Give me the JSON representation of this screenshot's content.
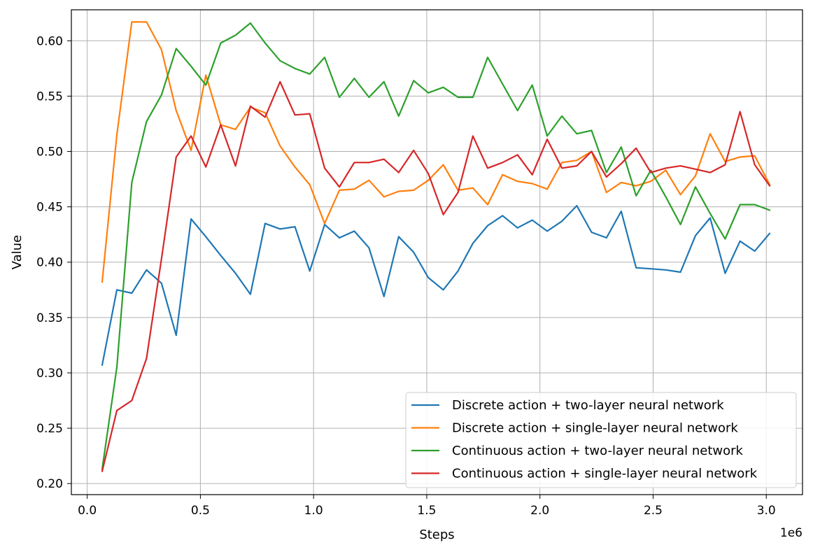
{
  "chart_data": {
    "type": "line",
    "title": "",
    "xlabel": "Steps",
    "ylabel": "Value",
    "x_offset_label": "1e6",
    "xlim": [
      -0.07,
      3.16
    ],
    "ylim": [
      0.19,
      0.628
    ],
    "x_ticks": [
      0.0,
      0.5,
      1.0,
      1.5,
      2.0,
      2.5,
      3.0
    ],
    "x_tick_labels": [
      "0.0",
      "0.5",
      "1.0",
      "1.5",
      "2.0",
      "2.5",
      "3.0"
    ],
    "y_ticks": [
      0.2,
      0.25,
      0.3,
      0.35,
      0.4,
      0.45,
      0.5,
      0.55,
      0.6
    ],
    "y_tick_labels": [
      "0.20",
      "0.25",
      "0.30",
      "0.35",
      "0.40",
      "0.45",
      "0.50",
      "0.55",
      "0.60"
    ],
    "grid": true,
    "legend_position": "lower-right",
    "x": [
      0.066,
      0.131,
      0.197,
      0.262,
      0.328,
      0.393,
      0.459,
      0.524,
      0.59,
      0.655,
      0.721,
      0.786,
      0.852,
      0.918,
      0.983,
      1.049,
      1.114,
      1.18,
      1.245,
      1.311,
      1.376,
      1.442,
      1.507,
      1.573,
      1.638,
      1.704,
      1.769,
      1.835,
      1.901,
      1.966,
      2.032,
      2.097,
      2.163,
      2.228,
      2.294,
      2.359,
      2.425,
      2.49,
      2.556,
      2.621,
      2.687,
      2.752,
      2.818,
      2.884,
      2.949,
      3.015
    ],
    "series": [
      {
        "name": "Discrete action + two-layer neural network",
        "color": "#1f77b4",
        "values": [
          0.307,
          0.375,
          0.372,
          0.393,
          0.381,
          0.334,
          0.439,
          0.423,
          0.406,
          0.39,
          0.371,
          0.435,
          0.43,
          0.432,
          0.392,
          0.434,
          0.422,
          0.428,
          0.413,
          0.369,
          0.423,
          0.409,
          0.386,
          0.375,
          0.392,
          0.417,
          0.433,
          0.442,
          0.431,
          0.438,
          0.428,
          0.437,
          0.451,
          0.427,
          0.422,
          0.446,
          0.395,
          0.394,
          0.393,
          0.391,
          0.424,
          0.44,
          0.39,
          0.419,
          0.41,
          0.426
        ]
      },
      {
        "name": "Discrete action + single-layer neural network",
        "color": "#ff7f0e",
        "values": [
          0.382,
          0.515,
          0.617,
          0.617,
          0.592,
          0.537,
          0.501,
          0.569,
          0.524,
          0.52,
          0.54,
          0.535,
          0.505,
          0.486,
          0.47,
          0.435,
          0.465,
          0.466,
          0.474,
          0.459,
          0.464,
          0.465,
          0.474,
          0.488,
          0.465,
          0.467,
          0.452,
          0.479,
          0.473,
          0.471,
          0.466,
          0.49,
          0.492,
          0.5,
          0.463,
          0.472,
          0.469,
          0.473,
          0.483,
          0.461,
          0.478,
          0.516,
          0.491,
          0.495,
          0.496,
          0.47
        ]
      },
      {
        "name": "Continuous action + two-layer neural network",
        "color": "#2ca02c",
        "values": [
          0.213,
          0.305,
          0.472,
          0.527,
          0.551,
          0.593,
          0.577,
          0.56,
          0.598,
          0.605,
          0.616,
          0.598,
          0.582,
          0.575,
          0.57,
          0.585,
          0.549,
          0.566,
          0.549,
          0.563,
          0.532,
          0.564,
          0.553,
          0.558,
          0.549,
          0.549,
          0.585,
          0.561,
          0.537,
          0.56,
          0.514,
          0.532,
          0.516,
          0.519,
          0.481,
          0.504,
          0.46,
          0.483,
          0.459,
          0.434,
          0.468,
          0.444,
          0.421,
          0.452,
          0.452,
          0.447
        ]
      },
      {
        "name": "Continuous action + single-layer neural network",
        "color": "#d62728",
        "values": [
          0.211,
          0.266,
          0.275,
          0.313,
          0.403,
          0.495,
          0.514,
          0.486,
          0.524,
          0.487,
          0.541,
          0.531,
          0.563,
          0.533,
          0.534,
          0.485,
          0.468,
          0.49,
          0.49,
          0.493,
          0.481,
          0.501,
          0.48,
          0.443,
          0.463,
          0.514,
          0.485,
          0.49,
          0.497,
          0.479,
          0.511,
          0.485,
          0.487,
          0.5,
          0.477,
          0.489,
          0.503,
          0.481,
          0.485,
          0.487,
          0.484,
          0.481,
          0.488,
          0.536,
          0.488,
          0.469
        ]
      }
    ]
  }
}
